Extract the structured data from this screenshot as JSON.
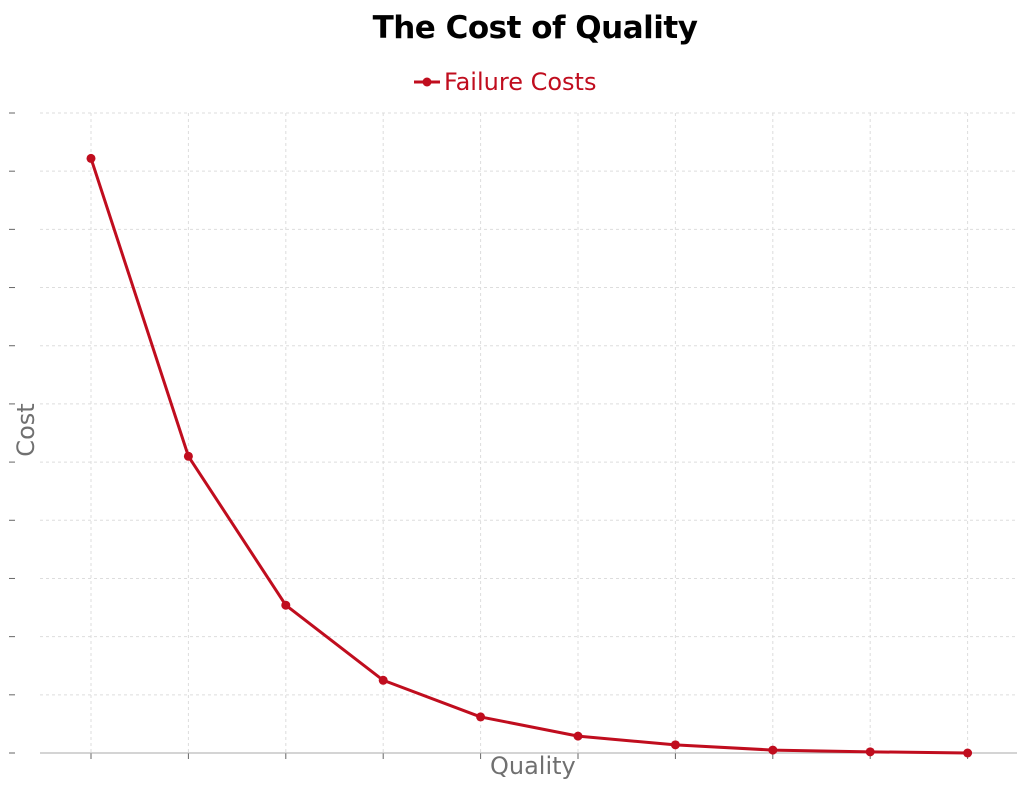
{
  "title": "The Cost of Quality",
  "legend": [
    {
      "label": "Failure Costs",
      "color": "#c00d1e"
    }
  ],
  "axes": {
    "xlabel": "Quality",
    "ylabel": "Cost"
  },
  "chart_data": {
    "type": "line",
    "title": "The Cost of Quality",
    "xlabel": "Quality",
    "ylabel": "Cost",
    "x": [
      1,
      2,
      3,
      4,
      5,
      6,
      7,
      8,
      9,
      10
    ],
    "series": [
      {
        "name": "Failure Costs",
        "color": "#c00d1e",
        "values": [
          10.22,
          5.1,
          2.54,
          1.25,
          0.62,
          0.29,
          0.14,
          0.05,
          0.02,
          0.0
        ]
      }
    ],
    "ylim": [
      0,
      11
    ],
    "x_tick_labels_visible": false,
    "y_tick_labels_visible": false,
    "grid": true,
    "legend_position": "top-center"
  }
}
